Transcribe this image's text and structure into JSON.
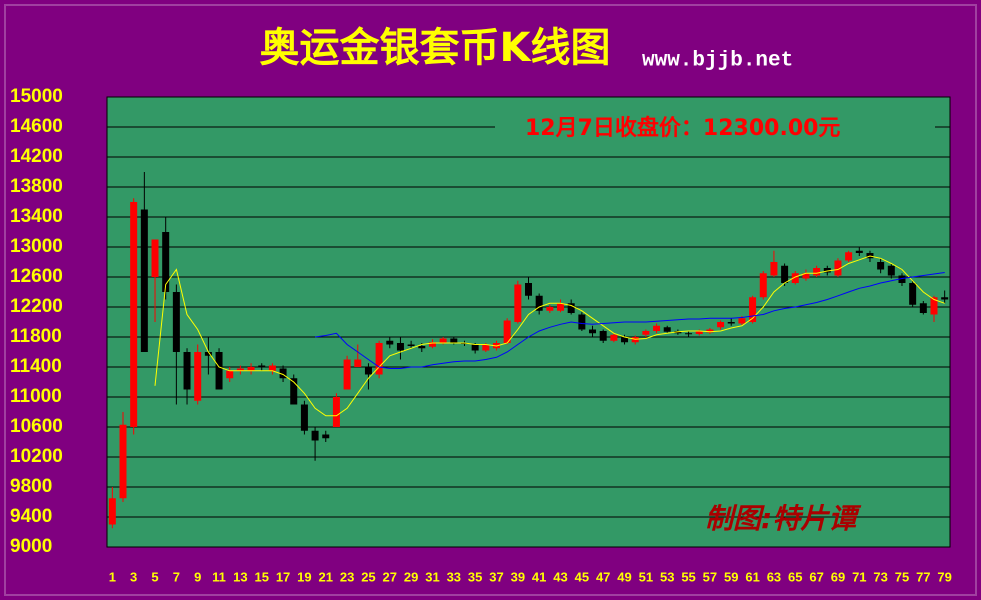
{
  "chart_data": {
    "type": "candlestick",
    "title": "奥运金银套币K线图",
    "subtitle": "www.bjjb.net",
    "annotation": "12月7日收盘价：12300.00元",
    "watermark": "制图:特片谭",
    "categories": [
      1,
      null,
      3,
      null,
      5,
      null,
      7,
      null,
      9,
      null,
      11,
      null,
      13,
      null,
      15,
      null,
      17,
      null,
      19,
      null,
      21,
      null,
      23,
      null,
      25,
      null,
      27,
      null,
      29,
      null,
      31,
      null,
      33,
      null,
      35,
      null,
      37,
      null,
      39,
      null,
      41,
      null,
      43,
      null,
      45,
      null,
      47,
      null,
      49,
      null,
      51,
      null,
      53,
      null,
      55,
      null,
      57,
      null,
      59,
      null,
      61,
      null,
      63,
      null,
      65,
      null,
      67,
      null,
      69,
      null,
      71,
      null,
      73,
      null,
      75,
      null,
      77,
      null,
      79
    ],
    "open": [
      9300,
      9650,
      10600,
      13500,
      12600,
      13200,
      12400,
      11600,
      10950,
      11600,
      11600,
      11250,
      11350,
      11350,
      11420,
      11350,
      11380,
      11250,
      10900,
      10550,
      10500,
      10600,
      11100,
      11400,
      11400,
      11300,
      11750,
      11720,
      11700,
      11680,
      11670,
      11720,
      11780,
      11720,
      11700,
      11620,
      11650,
      11720,
      12000,
      12520,
      12350,
      12150,
      12150,
      12250,
      12100,
      11900,
      11880,
      11750,
      11800,
      11730,
      11830,
      11880,
      11930,
      11880,
      11850,
      11840,
      11860,
      11930,
      12000,
      11980,
      12000,
      12330,
      12620,
      12750,
      12520,
      12580,
      12620,
      12720,
      12620,
      12820,
      12950,
      12920,
      12800,
      12750,
      12620,
      12520,
      12250,
      12100,
      12330
    ],
    "high": [
      9800,
      10800,
      13650,
      14000,
      13100,
      13400,
      12500,
      11650,
      11700,
      11800,
      11650,
      11400,
      11420,
      11450,
      11450,
      11450,
      11420,
      11300,
      10950,
      10600,
      10550,
      11050,
      11550,
      11700,
      11450,
      11750,
      11800,
      11800,
      11750,
      11720,
      11770,
      11800,
      11800,
      11750,
      11720,
      11720,
      11750,
      12050,
      12550,
      12600,
      12380,
      12230,
      12300,
      12300,
      12130,
      11950,
      11900,
      11850,
      11830,
      11820,
      11900,
      11980,
      11950,
      11900,
      11880,
      11900,
      11920,
      12020,
      12050,
      12080,
      12350,
      12680,
      12950,
      12780,
      12680,
      12700,
      12750,
      12750,
      12850,
      12950,
      13000,
      12950,
      12850,
      12780,
      12650,
      12550,
      12280,
      12350,
      12420
    ],
    "low": [
      9250,
      9600,
      10500,
      11600,
      12000,
      12300,
      10900,
      10900,
      10900,
      11300,
      11100,
      11200,
      11300,
      11300,
      11350,
      11300,
      11200,
      10900,
      10500,
      10150,
      10400,
      10600,
      11100,
      11400,
      11100,
      11250,
      11650,
      11500,
      11650,
      11600,
      11650,
      11700,
      11700,
      11680,
      11580,
      11600,
      11620,
      11700,
      11980,
      12300,
      12100,
      12120,
      12130,
      12100,
      11880,
      11800,
      11720,
      11730,
      11700,
      11700,
      11800,
      11850,
      11850,
      11830,
      11800,
      11820,
      11840,
      11900,
      11950,
      11960,
      11980,
      12300,
      12600,
      12480,
      12500,
      12550,
      12600,
      12620,
      12600,
      12800,
      12880,
      12800,
      12650,
      12580,
      12480,
      12200,
      12100,
      12000,
      12250
    ],
    "close": [
      9650,
      10630,
      13600,
      11600,
      13100,
      12400,
      11600,
      11100,
      11600,
      11550,
      11100,
      11350,
      11380,
      11400,
      11400,
      11420,
      11250,
      10900,
      10550,
      10420,
      10450,
      11000,
      11500,
      11500,
      11300,
      11720,
      11700,
      11620,
      11680,
      11650,
      11730,
      11780,
      11720,
      11710,
      11620,
      11700,
      11720,
      12020,
      12500,
      12350,
      12150,
      12200,
      12250,
      12120,
      11900,
      11850,
      11750,
      11830,
      11730,
      11800,
      11880,
      11950,
      11870,
      11850,
      11840,
      11880,
      11900,
      12000,
      11980,
      12050,
      12330,
      12650,
      12800,
      12520,
      12650,
      12650,
      12720,
      12660,
      12820,
      12930,
      12920,
      12850,
      12700,
      12620,
      12520,
      12230,
      12120,
      12330,
      12300
    ],
    "up_color": "#ff0000",
    "down_color": "#000000",
    "series": [
      {
        "color": "#ffff00",
        "values": [
          null,
          null,
          null,
          null,
          11150,
          12500,
          12700,
          12100,
          11900,
          11600,
          11400,
          11350,
          11350,
          11350,
          11350,
          11350,
          11300,
          11200,
          11050,
          10850,
          10750,
          10750,
          10850,
          11050,
          11250,
          11400,
          11550,
          11600,
          11650,
          11700,
          11720,
          11720,
          11720,
          11720,
          11700,
          11700,
          11680,
          11720,
          11900,
          12100,
          12200,
          12250,
          12250,
          12220,
          12150,
          12050,
          11950,
          11850,
          11800,
          11770,
          11780,
          11830,
          11850,
          11870,
          11880,
          11880,
          11870,
          11880,
          11920,
          11950,
          12050,
          12200,
          12400,
          12520,
          12600,
          12650,
          12650,
          12680,
          12700,
          12780,
          12830,
          12880,
          12850,
          12780,
          12700,
          12550,
          12400,
          12300,
          12250
        ]
      },
      {
        "color": "#0000ff",
        "values": [
          null,
          null,
          null,
          null,
          null,
          null,
          null,
          null,
          null,
          null,
          null,
          null,
          null,
          null,
          null,
          null,
          null,
          null,
          null,
          11800,
          11820,
          11850,
          11700,
          11600,
          11500,
          11400,
          11380,
          11380,
          11400,
          11400,
          11430,
          11450,
          11470,
          11480,
          11480,
          11500,
          11530,
          11600,
          11700,
          11800,
          11880,
          11930,
          11970,
          12000,
          11980,
          11970,
          11980,
          11990,
          12000,
          12000,
          12000,
          12010,
          12020,
          12030,
          12040,
          12040,
          12050,
          12050,
          12050,
          12060,
          12080,
          12100,
          12150,
          12180,
          12200,
          12230,
          12260,
          12300,
          12350,
          12400,
          12450,
          12480,
          12520,
          12550,
          12580,
          12600,
          12620,
          12640,
          12660
        ]
      }
    ],
    "ylim": [
      9000,
      15000
    ],
    "yticks": [
      9000,
      9400,
      9800,
      10200,
      10600,
      11000,
      11400,
      11800,
      12200,
      12600,
      13000,
      13400,
      13800,
      14200,
      14600,
      15000
    ],
    "grid": true,
    "plot_color": "#339966"
  }
}
